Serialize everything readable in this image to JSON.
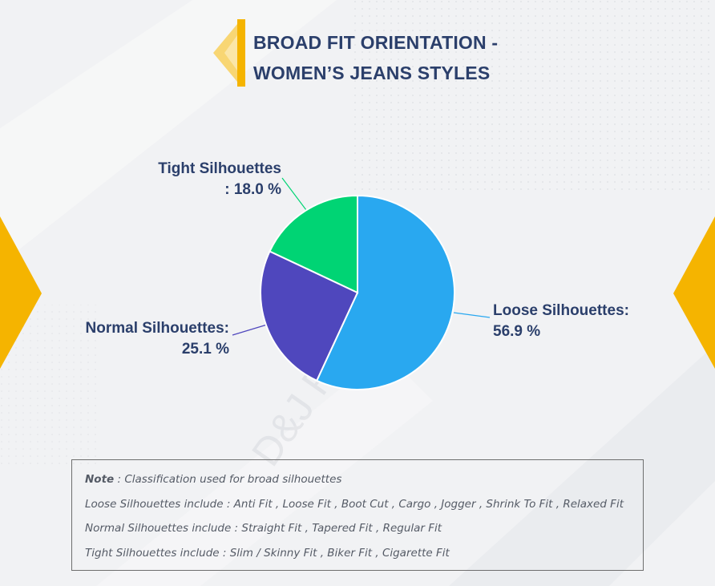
{
  "title": {
    "line1": "BROAD FIT ORIENTATION -",
    "line2": "WOMEN’S JEANS STYLES"
  },
  "colors": {
    "accent": "#f5b400",
    "title": "#2b3f6b",
    "loose": "#29a8f0",
    "normal": "#4f47bd",
    "tight": "#00d474"
  },
  "watermark": "D&J Reports",
  "chart_data": {
    "type": "pie",
    "slices": [
      {
        "label": "Loose Silhouettes",
        "value": 56.9,
        "color": "#29a8f0"
      },
      {
        "label": "Normal Silhouettes",
        "value": 25.1,
        "color": "#4f47bd"
      },
      {
        "label": "Tight Silhouettes",
        "value": 18.0,
        "color": "#00d474"
      }
    ]
  },
  "labels": {
    "loose_name": "Loose Silhouettes:",
    "loose_value": "56.9 %",
    "normal_name": "Normal Silhouettes:",
    "normal_value": "25.1 %",
    "tight_name": "Tight Silhouettes",
    "tight_value": ": 18.0 %"
  },
  "note": {
    "line1_bold": "Note",
    "line1_rest": " : Classification used for broad silhouettes",
    "line2": "Loose Silhouettes include : Anti Fit , Loose Fit , Boot Cut , Cargo , Jogger , Shrink To Fit , Relaxed Fit",
    "line3": "Normal Silhouettes include : Straight Fit , Tapered Fit , Regular Fit",
    "line4": "Tight Silhouettes include : Slim / Skinny Fit , Biker Fit , Cigarette Fit"
  }
}
